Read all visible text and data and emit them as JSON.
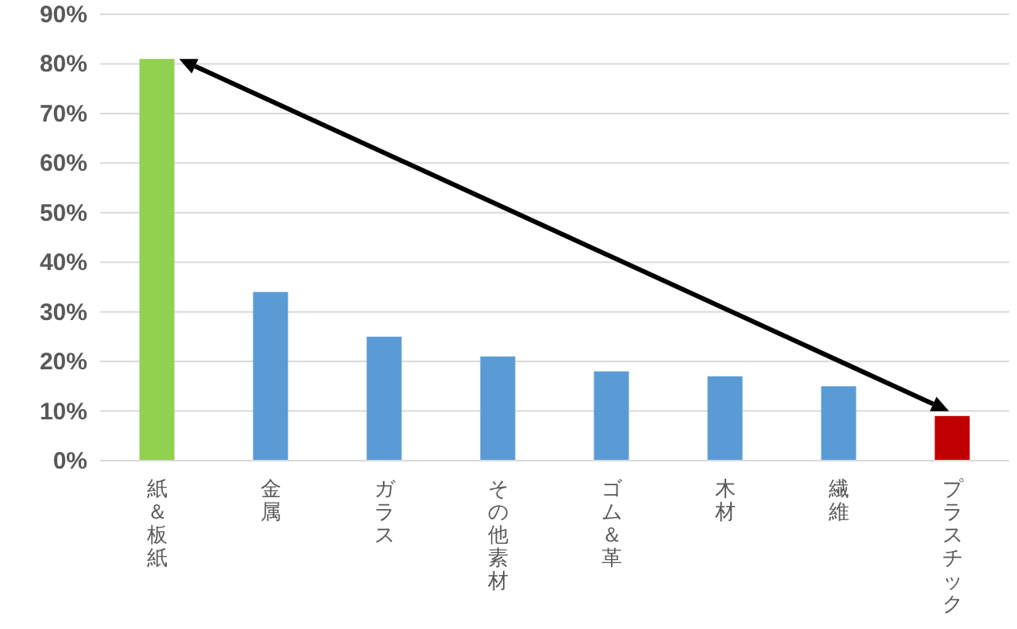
{
  "chart_data": {
    "type": "bar",
    "categories": [
      "紙＆板紙",
      "金属",
      "ガラス",
      "その他素材",
      "ゴム＆革",
      "木材",
      "繊維",
      "プラスチック"
    ],
    "values": [
      81,
      34,
      25,
      21,
      18,
      17,
      15,
      9
    ],
    "colors": [
      "#92d050",
      "#5b9bd5",
      "#5b9bd5",
      "#5b9bd5",
      "#5b9bd5",
      "#5b9bd5",
      "#5b9bd5",
      "#c00000"
    ],
    "ylim": [
      0,
      90
    ],
    "yticks": [
      {
        "value": 0,
        "label": "0%"
      },
      {
        "value": 10,
        "label": "10%"
      },
      {
        "value": 20,
        "label": "20%"
      },
      {
        "value": 30,
        "label": "30%"
      },
      {
        "value": 40,
        "label": "40%"
      },
      {
        "value": 50,
        "label": "50%"
      },
      {
        "value": 60,
        "label": "60%"
      },
      {
        "value": 70,
        "label": "70%"
      },
      {
        "value": 80,
        "label": "80%"
      },
      {
        "value": 90,
        "label": "90%"
      }
    ],
    "grid": "y"
  }
}
